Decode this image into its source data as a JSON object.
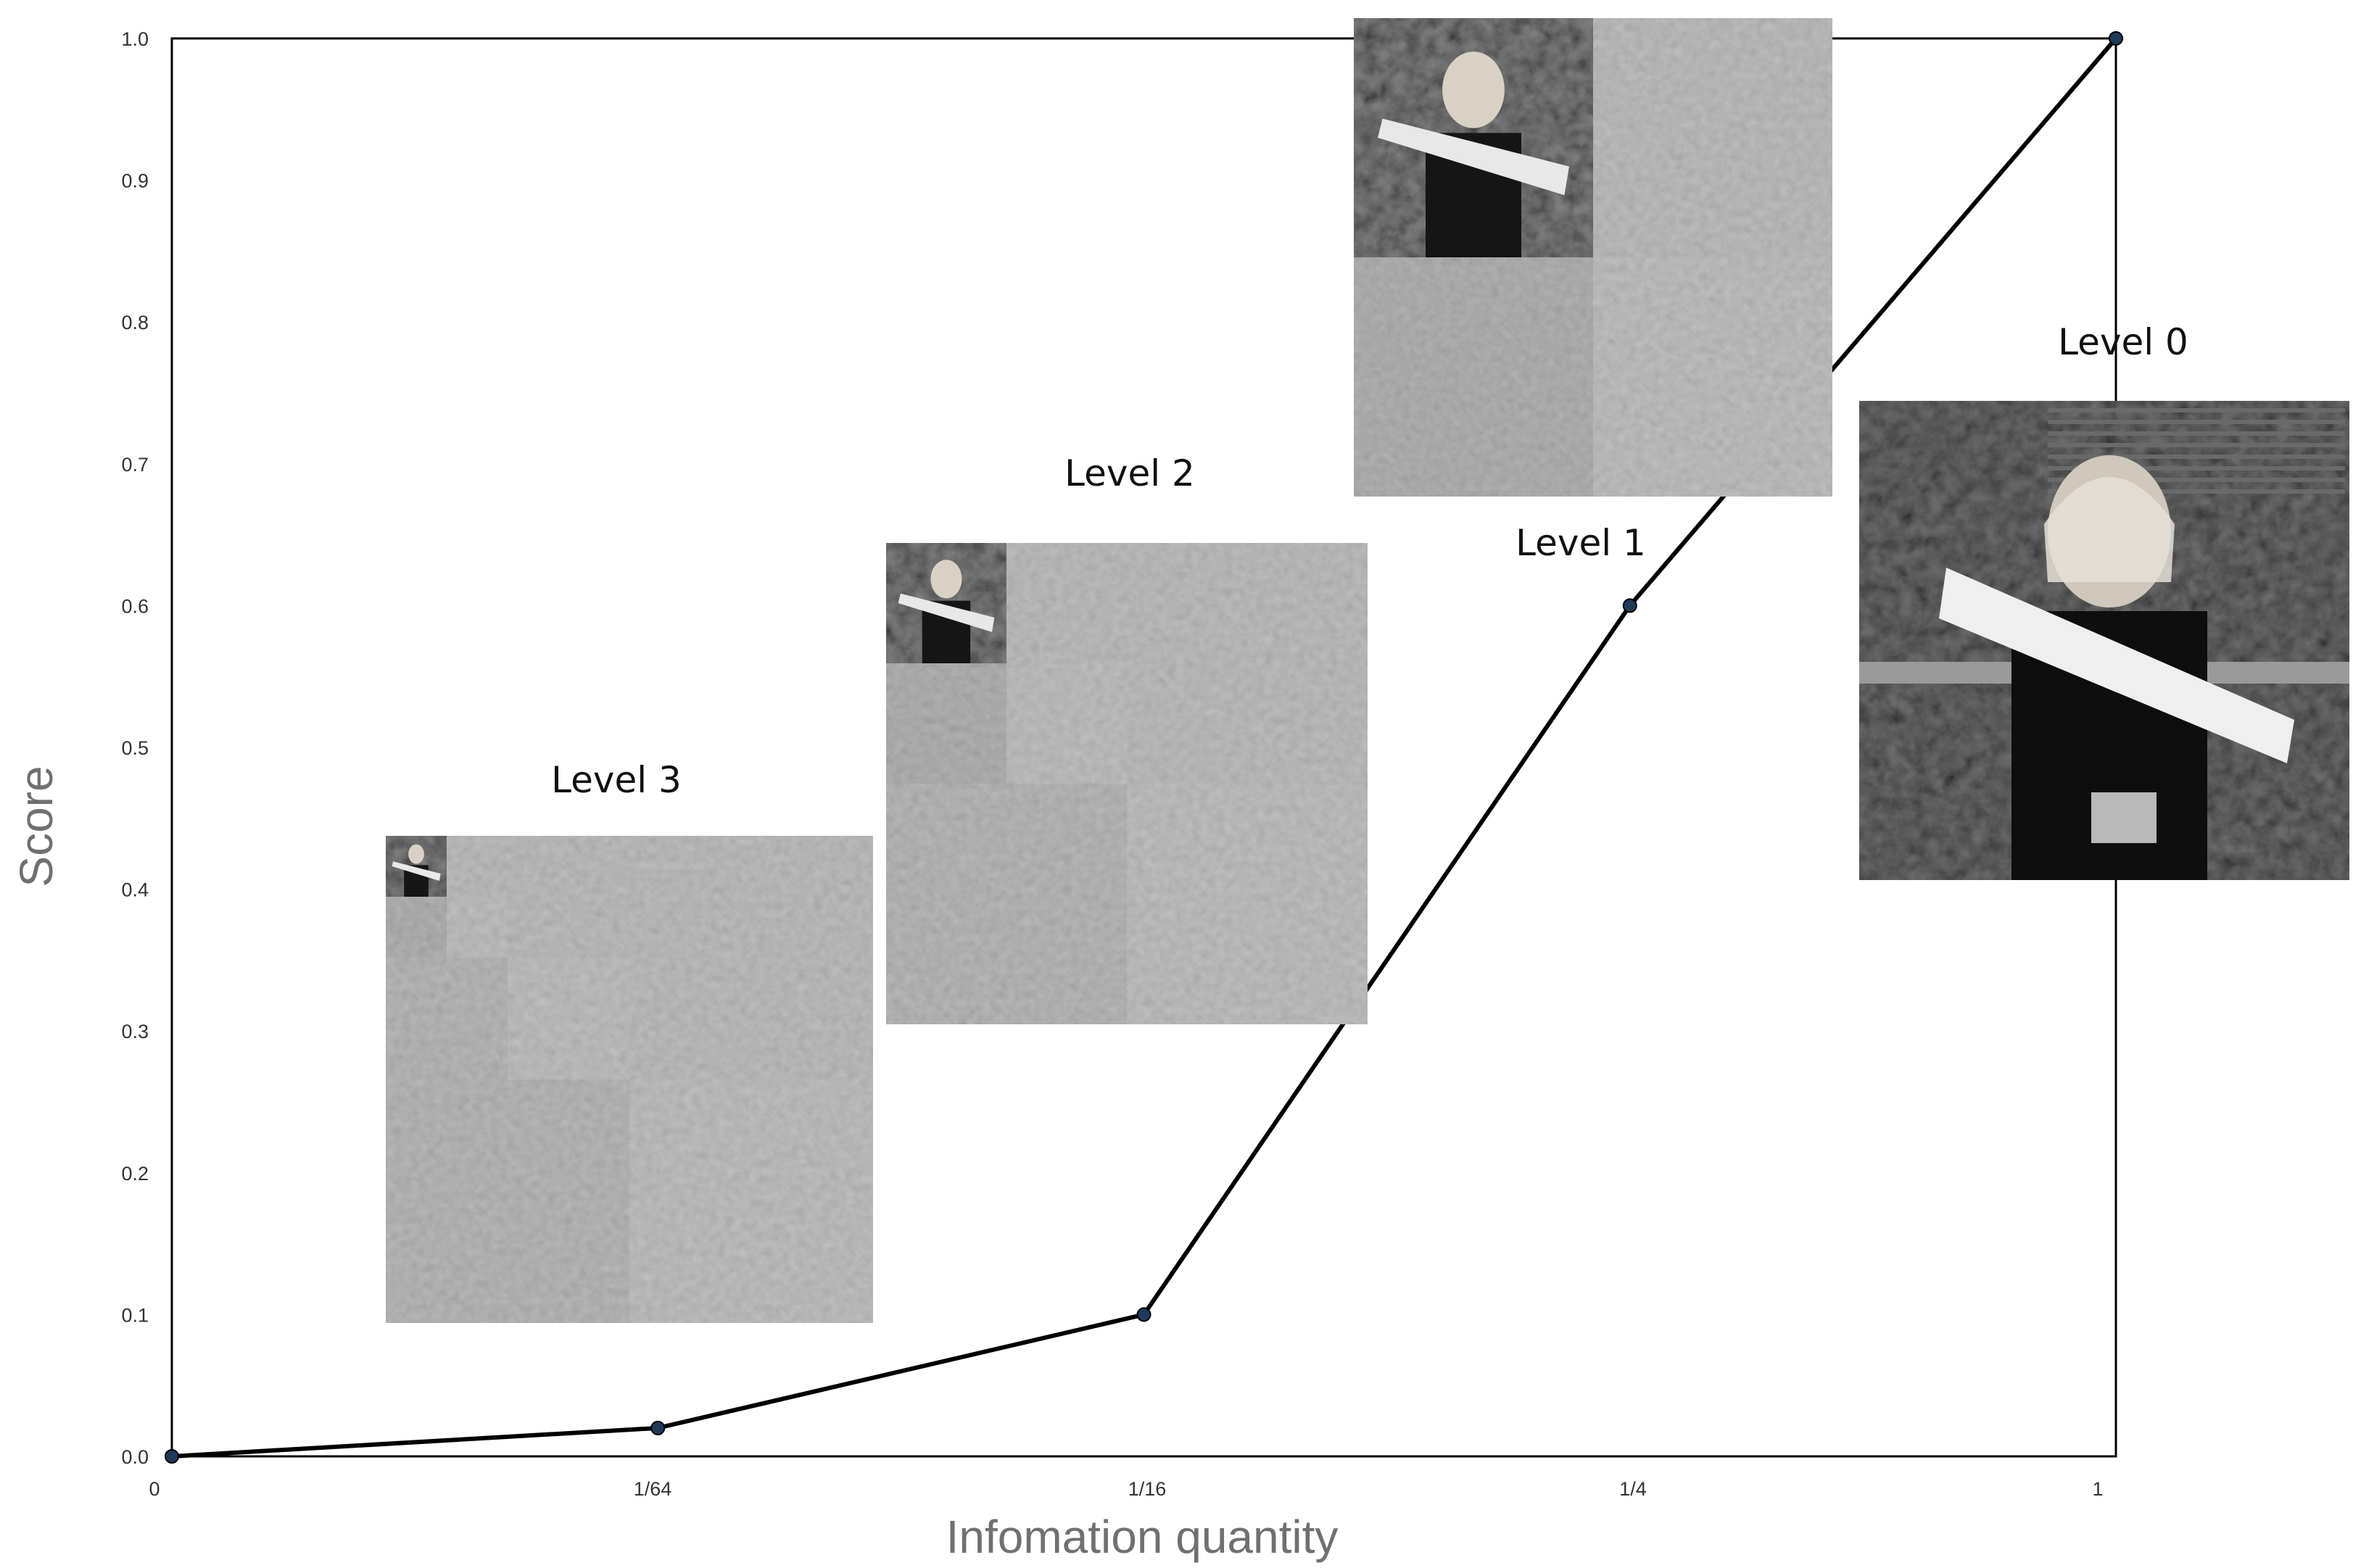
{
  "chart_data": {
    "type": "line",
    "xlabel": "Infomation quantity",
    "ylabel": "Score",
    "x": [
      "0",
      "1/64",
      "1/16",
      "1/4",
      "1"
    ],
    "series": [
      {
        "values": [
          0.0,
          0.02,
          0.1,
          0.6,
          1.0
        ]
      }
    ],
    "yticks": [
      "0.0",
      "0.1",
      "0.2",
      "0.3",
      "0.4",
      "0.5",
      "0.6",
      "0.7",
      "0.8",
      "0.9",
      "1.0"
    ],
    "ylim": [
      0,
      1
    ],
    "grid": false,
    "line_color": "#000000",
    "marker_color": "#1f3a5a",
    "annotations": [
      {
        "label": "Level 3",
        "kind": "wavelet-decomposition-image",
        "levels": 3
      },
      {
        "label": "Level 2",
        "kind": "wavelet-decomposition-image",
        "levels": 2
      },
      {
        "label": "Level 1",
        "kind": "wavelet-decomposition-image",
        "levels": 1
      },
      {
        "label": "Level 0",
        "kind": "photo"
      }
    ]
  }
}
